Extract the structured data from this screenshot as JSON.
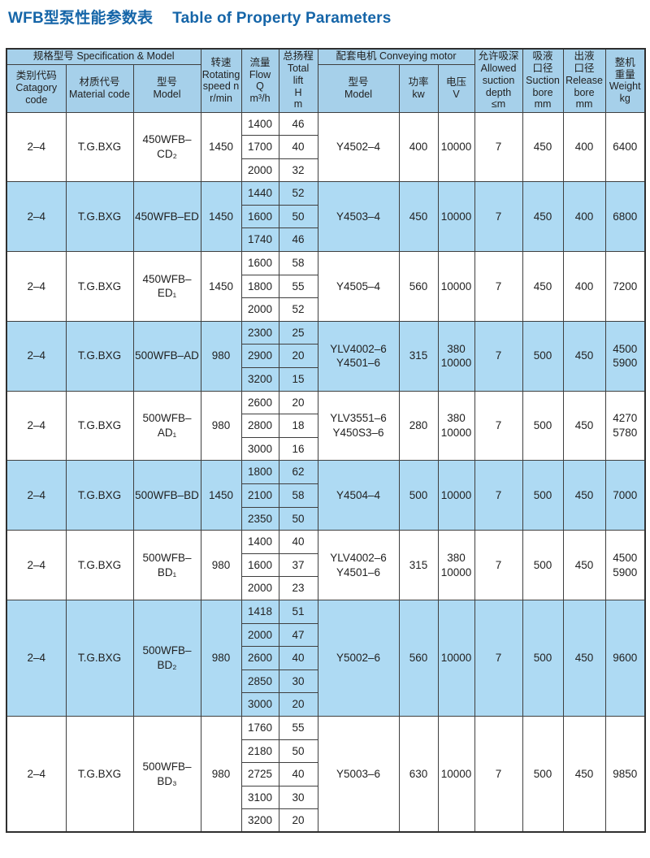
{
  "page": {
    "title_zh": "WFB型泵性能参数表",
    "title_en": "Table of Property Parameters"
  },
  "colors": {
    "title": "#1565a8",
    "header_bg": "#a6d0ea",
    "row_shade_bg": "#aedaf3",
    "border": "#3f3f3f",
    "text": "#222222"
  },
  "table": {
    "header": {
      "spec_group": "规格型号 Specification & Model",
      "catagory_code": "类别代码\nCatagory\ncode",
      "material_code": "材质代号\nMaterial code",
      "model": "型号\nModel",
      "rotating_speed": "转速\nRotating\nspeed n\nr/min",
      "flow": "流量\nFlow\nQ\nm³/h",
      "total_lift": "总扬程\nTotal\nlift\nH\nm",
      "motor_group": "配套电机  Conveying motor",
      "motor_model": "型号\nModel",
      "power": "功率\nkw",
      "voltage": "电压\nV",
      "allowed_suction_depth": "允许吸深\nAllowed\nsuction\ndepth\n≤m",
      "suction_bore": "吸液\n口径\nSuction\nbore\nmm",
      "release_bore": "出液\n口径\nRelease\nbore\nmm",
      "weight": "整机\n重量\nWeight\nkg"
    },
    "groups": [
      {
        "shade": false,
        "catagory_code": "2–4",
        "material_code": "T.G.BXG",
        "model": "450WFB–CD₂",
        "rotating_speed": "1450",
        "rows": [
          [
            "1400",
            "46"
          ],
          [
            "1700",
            "40"
          ],
          [
            "2000",
            "32"
          ]
        ],
        "motor_model": "Y4502–4",
        "power_kw": "400",
        "voltage_v": "10000",
        "suction_depth": "7",
        "suction_bore": "450",
        "release_bore": "400",
        "weight_kg": "6400"
      },
      {
        "shade": true,
        "catagory_code": "2–4",
        "material_code": "T.G.BXG",
        "model": "450WFB–ED",
        "rotating_speed": "1450",
        "rows": [
          [
            "1440",
            "52"
          ],
          [
            "1600",
            "50"
          ],
          [
            "1740",
            "46"
          ]
        ],
        "motor_model": "Y4503–4",
        "power_kw": "450",
        "voltage_v": "10000",
        "suction_depth": "7",
        "suction_bore": "450",
        "release_bore": "400",
        "weight_kg": "6800"
      },
      {
        "shade": false,
        "catagory_code": "2–4",
        "material_code": "T.G.BXG",
        "model": "450WFB–ED₁",
        "rotating_speed": "1450",
        "rows": [
          [
            "1600",
            "58"
          ],
          [
            "1800",
            "55"
          ],
          [
            "2000",
            "52"
          ]
        ],
        "motor_model": "Y4505–4",
        "power_kw": "560",
        "voltage_v": "10000",
        "suction_depth": "7",
        "suction_bore": "450",
        "release_bore": "400",
        "weight_kg": "7200"
      },
      {
        "shade": true,
        "catagory_code": "2–4",
        "material_code": "T.G.BXG",
        "model": "500WFB–AD",
        "rotating_speed": "980",
        "rows": [
          [
            "2300",
            "25"
          ],
          [
            "2900",
            "20"
          ],
          [
            "3200",
            "15"
          ]
        ],
        "motor_model": "YLV4002–6\nY4501–6",
        "power_kw": "315",
        "voltage_v": "380\n10000",
        "suction_depth": "7",
        "suction_bore": "500",
        "release_bore": "450",
        "weight_kg": "4500\n5900"
      },
      {
        "shade": false,
        "catagory_code": "2–4",
        "material_code": "T.G.BXG",
        "model": "500WFB–AD₁",
        "rotating_speed": "980",
        "rows": [
          [
            "2600",
            "20"
          ],
          [
            "2800",
            "18"
          ],
          [
            "3000",
            "16"
          ]
        ],
        "motor_model": "YLV3551–6\nY450S3–6",
        "power_kw": "280",
        "voltage_v": "380\n10000",
        "suction_depth": "7",
        "suction_bore": "500",
        "release_bore": "450",
        "weight_kg": "4270\n5780"
      },
      {
        "shade": true,
        "catagory_code": "2–4",
        "material_code": "T.G.BXG",
        "model": "500WFB–BD",
        "rotating_speed": "1450",
        "rows": [
          [
            "1800",
            "62"
          ],
          [
            "2100",
            "58"
          ],
          [
            "2350",
            "50"
          ]
        ],
        "motor_model": "Y4504–4",
        "power_kw": "500",
        "voltage_v": "10000",
        "suction_depth": "7",
        "suction_bore": "500",
        "release_bore": "450",
        "weight_kg": "7000"
      },
      {
        "shade": false,
        "catagory_code": "2–4",
        "material_code": "T.G.BXG",
        "model": "500WFB–BD₁",
        "rotating_speed": "980",
        "rows": [
          [
            "1400",
            "40"
          ],
          [
            "1600",
            "37"
          ],
          [
            "2000",
            "23"
          ]
        ],
        "motor_model": "YLV4002–6\nY4501–6",
        "power_kw": "315",
        "voltage_v": "380\n10000",
        "suction_depth": "7",
        "suction_bore": "500",
        "release_bore": "450",
        "weight_kg": "4500\n5900"
      },
      {
        "shade": true,
        "catagory_code": "2–4",
        "material_code": "T.G.BXG",
        "model": "500WFB–BD₂",
        "rotating_speed": "980",
        "rows": [
          [
            "1418",
            "51"
          ],
          [
            "2000",
            "47"
          ],
          [
            "2600",
            "40"
          ],
          [
            "2850",
            "30"
          ],
          [
            "3000",
            "20"
          ]
        ],
        "motor_model": "Y5002–6",
        "power_kw": "560",
        "voltage_v": "10000",
        "suction_depth": "7",
        "suction_bore": "500",
        "release_bore": "450",
        "weight_kg": "9600"
      },
      {
        "shade": false,
        "catagory_code": "2–4",
        "material_code": "T.G.BXG",
        "model": "500WFB–BD₃",
        "rotating_speed": "980",
        "rows": [
          [
            "1760",
            "55"
          ],
          [
            "2180",
            "50"
          ],
          [
            "2725",
            "40"
          ],
          [
            "3100",
            "30"
          ],
          [
            "3200",
            "20"
          ]
        ],
        "motor_model": "Y5003–6",
        "power_kw": "630",
        "voltage_v": "10000",
        "suction_depth": "7",
        "suction_bore": "500",
        "release_bore": "450",
        "weight_kg": "9850"
      }
    ]
  }
}
